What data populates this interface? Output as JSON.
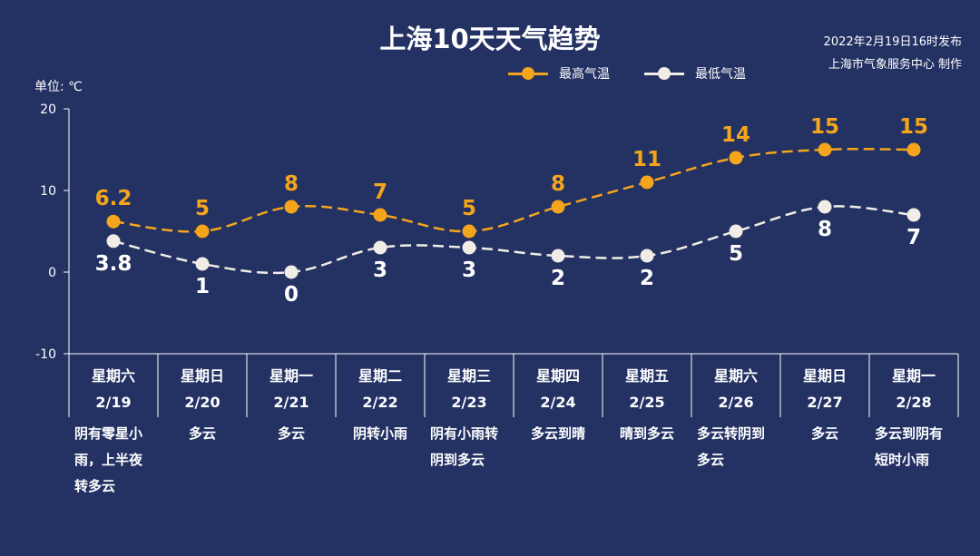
{
  "header": {
    "title": "上海10天天气趋势",
    "publish_line1": "2022年2月19日16时发布",
    "publish_line2": "上海市气象服务中心 制作"
  },
  "colors": {
    "background": "#233163",
    "high": "#f4a51c",
    "low": "#f2ece6",
    "axis": "#ffffff"
  },
  "chart_data": {
    "type": "line",
    "title": "上海10天天气趋势",
    "ylabel": "单位: ℃",
    "ylim": [
      -10,
      20
    ],
    "yticks": [
      "20",
      "10",
      "0",
      "-10"
    ],
    "grid": false,
    "legend_position": "top-right",
    "categories": [
      "2/19",
      "2/20",
      "2/21",
      "2/22",
      "2/23",
      "2/24",
      "2/25",
      "2/26",
      "2/27",
      "2/28"
    ],
    "series": [
      {
        "name": "最高气温",
        "values": [
          6.2,
          5,
          8,
          7,
          5,
          8,
          11,
          14,
          15,
          15
        ],
        "labels": [
          "6.2",
          "5",
          "8",
          "7",
          "5",
          "8",
          "11",
          "14",
          "15",
          "15"
        ]
      },
      {
        "name": "最低气温",
        "values": [
          3.8,
          1,
          0,
          3,
          3,
          2,
          2,
          5,
          8,
          7
        ],
        "labels": [
          "3.8",
          "1",
          "0",
          "3",
          "3",
          "2",
          "2",
          "5",
          "8",
          "7"
        ]
      }
    ]
  },
  "days": [
    {
      "weekday": "星期六",
      "date": "2/19",
      "weather": [
        "阴有零星小",
        "雨，上半夜",
        "转多云"
      ]
    },
    {
      "weekday": "星期日",
      "date": "2/20",
      "weather": [
        "多云"
      ]
    },
    {
      "weekday": "星期一",
      "date": "2/21",
      "weather": [
        "多云"
      ]
    },
    {
      "weekday": "星期二",
      "date": "2/22",
      "weather": [
        "阴转小雨"
      ]
    },
    {
      "weekday": "星期三",
      "date": "2/23",
      "weather": [
        "阴有小雨转",
        "阴到多云"
      ]
    },
    {
      "weekday": "星期四",
      "date": "2/24",
      "weather": [
        "多云到晴"
      ]
    },
    {
      "weekday": "星期五",
      "date": "2/25",
      "weather": [
        "晴到多云"
      ]
    },
    {
      "weekday": "星期六",
      "date": "2/26",
      "weather": [
        "多云转阴到",
        "多云"
      ]
    },
    {
      "weekday": "星期日",
      "date": "2/27",
      "weather": [
        "多云"
      ]
    },
    {
      "weekday": "星期一",
      "date": "2/28",
      "weather": [
        "多云到阴有",
        "短时小雨"
      ]
    }
  ]
}
